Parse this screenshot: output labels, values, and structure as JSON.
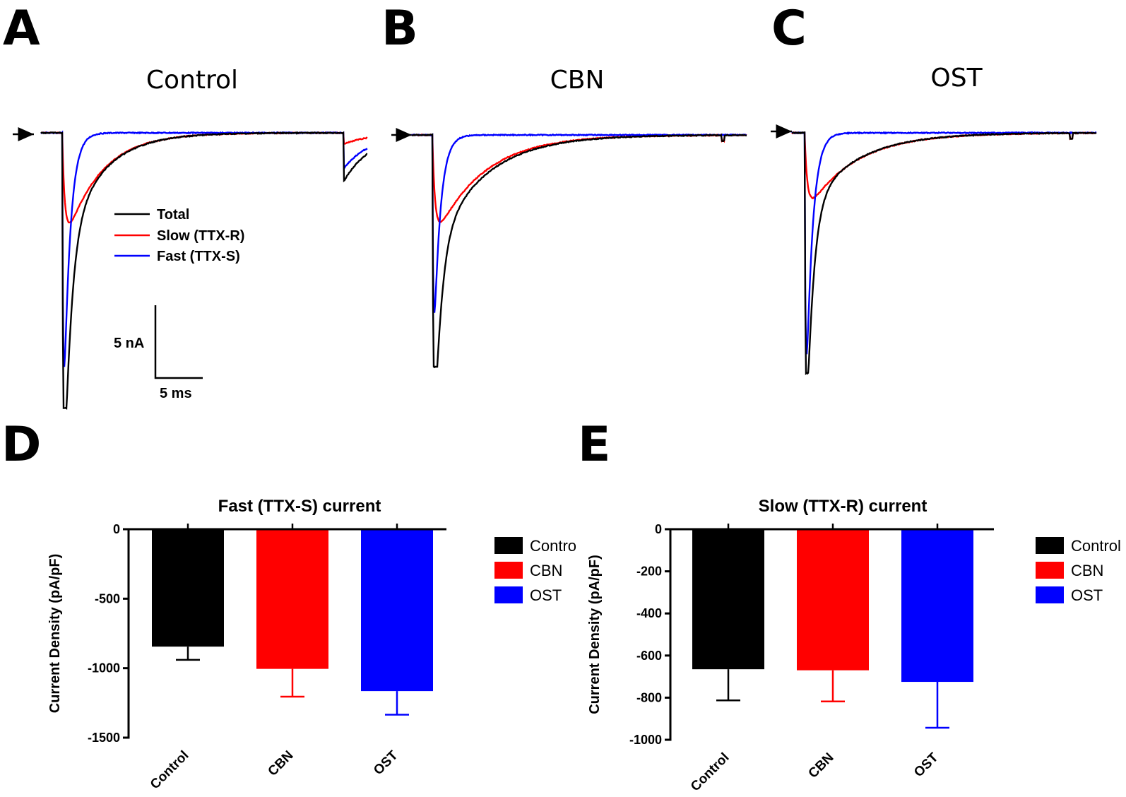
{
  "panels": {
    "A": {
      "letter": "A",
      "title": "Control"
    },
    "B": {
      "letter": "B",
      "title": "CBN"
    },
    "C": {
      "letter": "C",
      "title": "OST"
    },
    "D": {
      "letter": "D"
    },
    "E": {
      "letter": "E"
    }
  },
  "trace_legend": {
    "total": "Total",
    "slow": "Slow (TTX-R)",
    "fast": "Fast (TTX-S)"
  },
  "scale_bar": {
    "y_label": "5 nA",
    "x_label": "5 ms"
  },
  "colors": {
    "total": "#000000",
    "slow": "#ff0000",
    "fast": "#0000ff",
    "bar_black": "#000000",
    "bar_red": "#ff0000",
    "bar_blue": "#0000ff"
  },
  "traces": [
    {
      "panel": "A",
      "total_peak_nA": -19.0,
      "slow_peak_nA": -6.2,
      "fast_peak_nA": -16.2
    },
    {
      "panel": "B",
      "total_peak_nA": -16.0,
      "slow_peak_nA": -6.0,
      "fast_peak_nA": -12.3
    },
    {
      "panel": "C",
      "total_peak_nA": -16.6,
      "slow_peak_nA": -4.5,
      "fast_peak_nA": -15.3
    }
  ],
  "chart_data": [
    {
      "type": "bar",
      "title": "Fast (TTX-S) current",
      "ylabel": "Current Density (pA/pF)",
      "xlabel": "",
      "categories": [
        "Control",
        "CBN",
        "OST"
      ],
      "values": [
        -845,
        -1005,
        -1165
      ],
      "errors": [
        95,
        200,
        170
      ],
      "ylim": [
        -1500,
        0
      ],
      "yticks": [
        0,
        -500,
        -1000,
        -1500
      ],
      "legend": [
        "Contro",
        "CBN",
        "OST"
      ]
    },
    {
      "type": "bar",
      "title": "Slow (TTX-R) current",
      "ylabel": "Current Density (pA/pF)",
      "xlabel": "",
      "categories": [
        "Control",
        "CBN",
        "OST"
      ],
      "values": [
        -665,
        -670,
        -725
      ],
      "errors": [
        148,
        148,
        218
      ],
      "ylim": [
        -1000,
        0
      ],
      "yticks": [
        0,
        -200,
        -400,
        -600,
        -800,
        -1000
      ],
      "legend": [
        "Control",
        "CBN",
        "OST"
      ]
    }
  ]
}
